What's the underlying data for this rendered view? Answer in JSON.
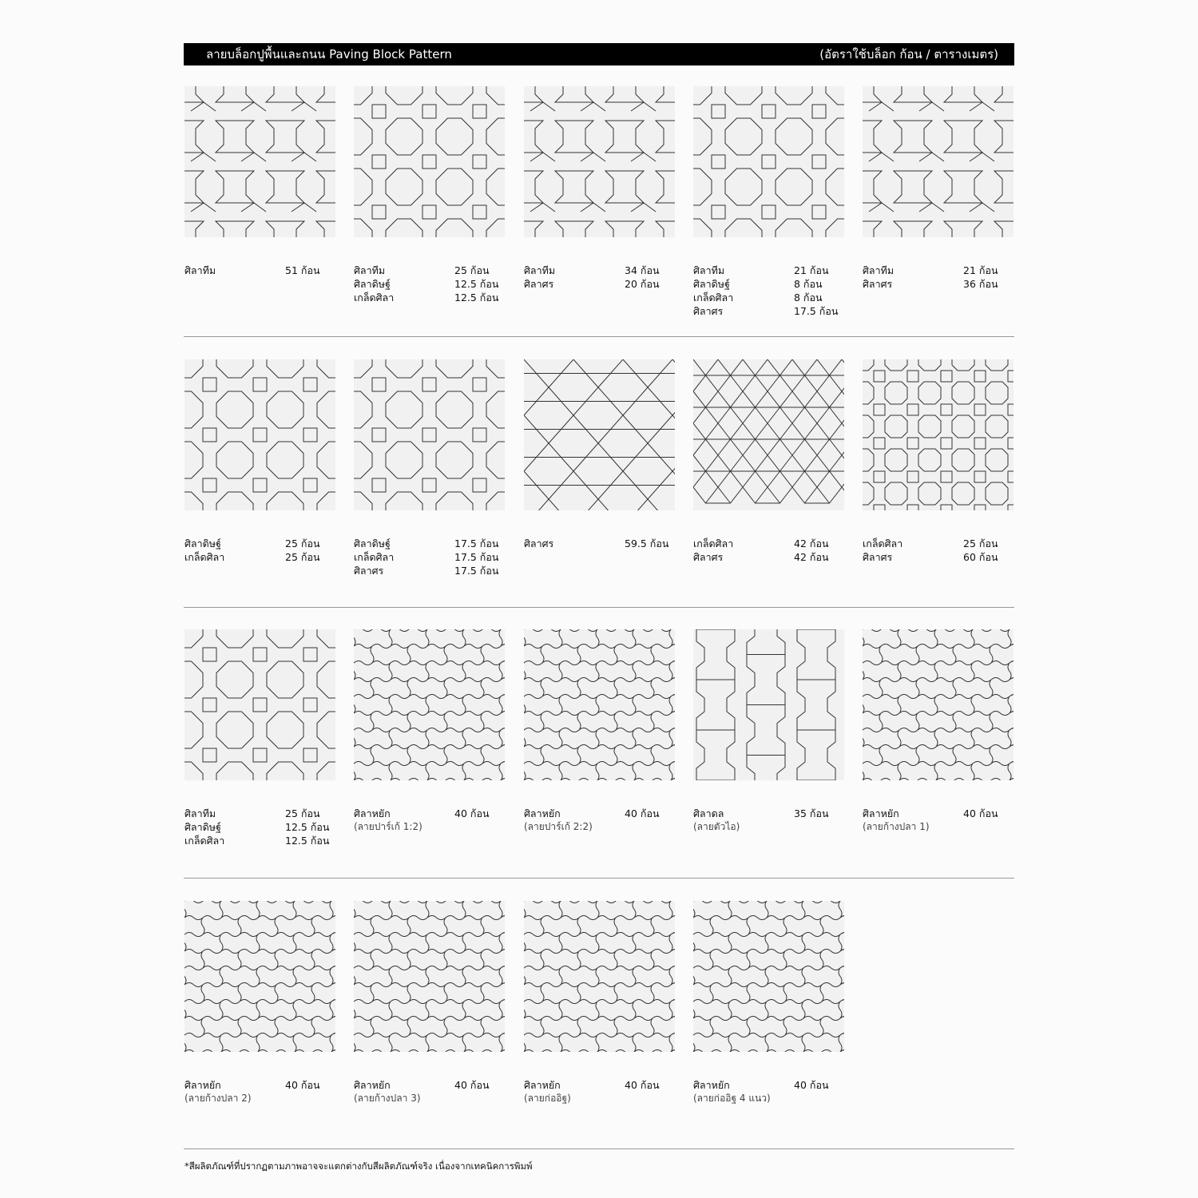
{
  "header": {
    "title": "ลายบล็อกปูพื้นและถนน Paving Block Pattern",
    "unit_note": "(อัตราใช้บล็อก ก้อน / ตารางเมตร)"
  },
  "tiles": [
    {
      "pattern": "bone",
      "items": [
        {
          "name": "ศิลาทีม",
          "qty": "51 ก้อน"
        }
      ]
    },
    {
      "pattern": "octagon",
      "items": [
        {
          "name": "ศิลาทีม",
          "qty": "25 ก้อน"
        },
        {
          "name": "ศิลาดิษฐ์",
          "qty": "12.5 ก้อน"
        },
        {
          "name": "เกล็ดศิลา",
          "qty": "12.5 ก้อน"
        }
      ]
    },
    {
      "pattern": "bone",
      "items": [
        {
          "name": "ศิลาทีม",
          "qty": "34 ก้อน"
        },
        {
          "name": "ศิลาศร",
          "qty": "20 ก้อน"
        }
      ]
    },
    {
      "pattern": "octagon",
      "items": [
        {
          "name": "ศิลาทีม",
          "qty": "21 ก้อน"
        },
        {
          "name": "ศิลาดิษฐ์",
          "qty": "8 ก้อน"
        },
        {
          "name": "เกล็ดศิลา",
          "qty": "8 ก้อน"
        },
        {
          "name": "ศิลาศร",
          "qty": "17.5 ก้อน"
        }
      ]
    },
    {
      "pattern": "bone",
      "items": [
        {
          "name": "ศิลาทีม",
          "qty": "21 ก้อน"
        },
        {
          "name": "ศิลาศร",
          "qty": "36 ก้อน"
        }
      ]
    },
    {
      "pattern": "octagon",
      "items": [
        {
          "name": "ศิลาดิษฐ์",
          "qty": "25 ก้อน"
        },
        {
          "name": "เกล็ดศิลา",
          "qty": "25 ก้อน"
        }
      ]
    },
    {
      "pattern": "octagon",
      "items": [
        {
          "name": "ศิลาดิษฐ์",
          "qty": "17.5 ก้อน"
        },
        {
          "name": "เกล็ดศิลา",
          "qty": "17.5 ก้อน"
        },
        {
          "name": "ศิลาศร",
          "qty": "17.5 ก้อน"
        }
      ]
    },
    {
      "pattern": "hexagon",
      "items": [
        {
          "name": "ศิลาศร",
          "qty": "59.5 ก้อน"
        }
      ]
    },
    {
      "pattern": "diamond",
      "items": [
        {
          "name": "เกล็ดศิลา",
          "qty": "42 ก้อน"
        },
        {
          "name": "ศิลาศร",
          "qty": "42 ก้อน"
        }
      ]
    },
    {
      "pattern": "octagon-small",
      "items": [
        {
          "name": "เกล็ดศิลา",
          "qty": "25 ก้อน"
        },
        {
          "name": "ศิลาศร",
          "qty": "60 ก้อน"
        }
      ]
    },
    {
      "pattern": "octagon",
      "items": [
        {
          "name": "ศิลาทีม",
          "qty": "25 ก้อน"
        },
        {
          "name": "ศิลาดิษฐ์",
          "qty": "12.5 ก้อน"
        },
        {
          "name": "เกล็ดศิลา",
          "qty": "12.5 ก้อน"
        }
      ]
    },
    {
      "pattern": "wave",
      "items": [
        {
          "name": "ศิลาหยัก",
          "qty": "40 ก้อน"
        }
      ],
      "sub": "(ลายปาร์เก้ 1:2)"
    },
    {
      "pattern": "wave",
      "items": [
        {
          "name": "ศิลาหยัก",
          "qty": "40 ก้อน"
        }
      ],
      "sub": "(ลายปาร์เก้ 2:2)"
    },
    {
      "pattern": "dumbbell",
      "items": [
        {
          "name": "ศิลาดล",
          "qty": "35 ก้อน"
        }
      ],
      "sub": "(ลายตัวไอ)"
    },
    {
      "pattern": "wave",
      "items": [
        {
          "name": "ศิลาหยัก",
          "qty": "40 ก้อน"
        }
      ],
      "sub": "(ลายก้างปลา 1)"
    },
    {
      "pattern": "wave",
      "items": [
        {
          "name": "ศิลาหยัก",
          "qty": "40 ก้อน"
        }
      ],
      "sub": "(ลายก้างปลา 2)"
    },
    {
      "pattern": "wave",
      "items": [
        {
          "name": "ศิลาหยัก",
          "qty": "40 ก้อน"
        }
      ],
      "sub": "(ลายก้างปลา 3)"
    },
    {
      "pattern": "wave",
      "items": [
        {
          "name": "ศิลาหยัก",
          "qty": "40 ก้อน"
        }
      ],
      "sub": "(ลายก่ออิฐ)"
    },
    {
      "pattern": "wave",
      "items": [
        {
          "name": "ศิลาหยัก",
          "qty": "40 ก้อน"
        }
      ],
      "sub": "(ลายก่ออิฐ 4 แนว)"
    }
  ],
  "footer": "*สีผลิตภัณฑ์ที่ปรากฏตามภาพอาจจะแตกต่างกับสีผลิตภัณฑ์จริง เนื่องจากเทคนิคการพิมพ์"
}
